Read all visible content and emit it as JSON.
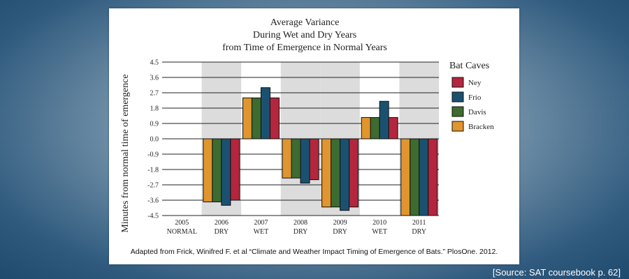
{
  "chart_data": {
    "type": "bar",
    "title_lines": [
      "Average Variance",
      "During Wet and Dry Years",
      "from Time of Emergence in Normal Years"
    ],
    "ylabel": "Minutes from normal time of emergence",
    "xlabel": "",
    "ylim": [
      -4.5,
      4.5
    ],
    "yticks": [
      "4.5",
      "3.6",
      "2.7",
      "1.8",
      "0.9",
      "0.0",
      "-0.9",
      "-1.8",
      "-2.7",
      "-3.6",
      "-4.5"
    ],
    "categories": [
      {
        "year": "2005",
        "type": "NORMAL",
        "shaded": false
      },
      {
        "year": "2006",
        "type": "DRY",
        "shaded": true
      },
      {
        "year": "2007",
        "type": "WET",
        "shaded": false
      },
      {
        "year": "2008",
        "type": "DRY",
        "shaded": true
      },
      {
        "year": "2009",
        "type": "DRY",
        "shaded": true
      },
      {
        "year": "2010",
        "type": "WET",
        "shaded": false
      },
      {
        "year": "2011",
        "type": "DRY",
        "shaded": true
      }
    ],
    "series": [
      {
        "name": "Bracken",
        "color": "#e0952e",
        "values": [
          0,
          -3.7,
          2.4,
          -2.3,
          -4.0,
          1.25,
          -4.5
        ]
      },
      {
        "name": "Davis",
        "color": "#3d6b30",
        "values": [
          0,
          -3.7,
          2.4,
          -2.3,
          -4.0,
          1.25,
          -4.5
        ]
      },
      {
        "name": "Frio",
        "color": "#1b5170",
        "values": [
          0,
          -3.9,
          3.0,
          -2.6,
          -4.2,
          2.2,
          -4.5
        ]
      },
      {
        "name": "Ney",
        "color": "#b3263d",
        "values": [
          0,
          -3.6,
          2.4,
          -2.4,
          -4.0,
          1.25,
          -4.5
        ]
      }
    ],
    "legend": {
      "title": "Bat Caves",
      "placement": "right",
      "order": [
        "Ney",
        "Frio",
        "Davis",
        "Bracken"
      ]
    },
    "grid": true
  },
  "credit": "Adapted from Frick, Winifred F. et al “Climate and Weather Impact Timing of Emergence of Bats.” PlosOne. 2012.",
  "source": "[Source: SAT coursebook p. 62]"
}
